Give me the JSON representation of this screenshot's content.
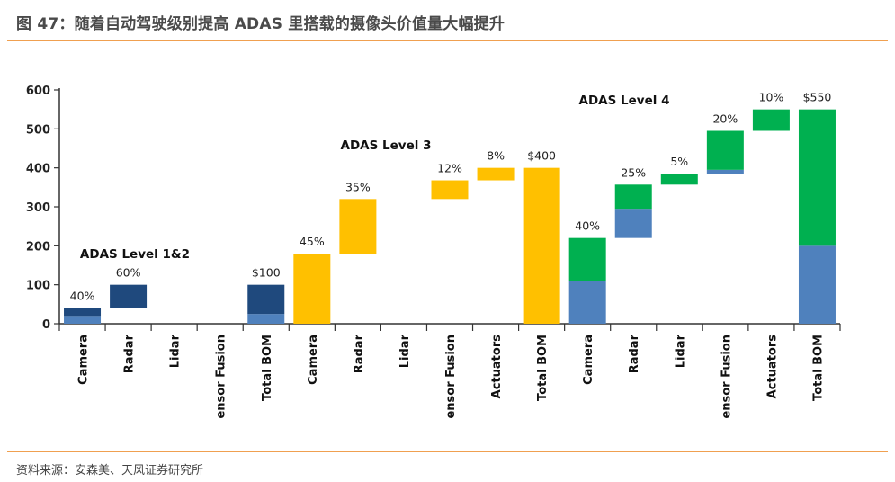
{
  "figure": {
    "title": "图 47：随着自动驾驶级别提高 ADAS 里搭载的摄像头价值量大幅提升",
    "source": "资料来源：安森美、天风证券研究所"
  },
  "colors": {
    "dark_blue": "#1f497d",
    "light_blue": "#4f81bd",
    "yellow": "#ffc000",
    "green": "#00b050",
    "axis": "#333333"
  },
  "chart_data": {
    "type": "bar",
    "subtype": "waterfall",
    "ylim": [
      0,
      600
    ],
    "yticks": [
      0,
      100,
      200,
      300,
      400,
      500,
      600
    ],
    "categories": [
      "Camera",
      "Radar",
      "Lidar",
      "ensor Fusion",
      "Total BOM",
      "Camera",
      "Radar",
      "Lidar",
      "ensor Fusion",
      "Actuators",
      "Total BOM",
      "Camera",
      "Radar",
      "Lidar",
      "ensor Fusion",
      "Actuators",
      "Total BOM"
    ],
    "groups": [
      {
        "name": "ADAS Level 1&2",
        "start": 0,
        "end": 4
      },
      {
        "name": "ADAS Level 3",
        "start": 5,
        "end": 10
      },
      {
        "name": "ADAS Level 4",
        "start": 11,
        "end": 16
      }
    ],
    "bars": [
      {
        "index": 0,
        "segments": [
          {
            "from": 0,
            "to": 20,
            "color": "light_blue"
          },
          {
            "from": 20,
            "to": 40,
            "color": "dark_blue"
          }
        ],
        "label": "40%"
      },
      {
        "index": 1,
        "segments": [
          {
            "from": 40,
            "to": 100,
            "color": "dark_blue"
          }
        ],
        "label": "60%"
      },
      {
        "index": 2,
        "segments": [],
        "label": ""
      },
      {
        "index": 3,
        "segments": [],
        "label": ""
      },
      {
        "index": 4,
        "segments": [
          {
            "from": 0,
            "to": 25,
            "color": "light_blue"
          },
          {
            "from": 25,
            "to": 100,
            "color": "dark_blue"
          }
        ],
        "label": "$100"
      },
      {
        "index": 5,
        "segments": [
          {
            "from": 0,
            "to": 180,
            "color": "yellow"
          }
        ],
        "label": "45%"
      },
      {
        "index": 6,
        "segments": [
          {
            "from": 180,
            "to": 320,
            "color": "yellow"
          }
        ],
        "label": "35%"
      },
      {
        "index": 7,
        "segments": [],
        "label": ""
      },
      {
        "index": 8,
        "segments": [
          {
            "from": 320,
            "to": 368,
            "color": "yellow"
          }
        ],
        "label": "12%"
      },
      {
        "index": 9,
        "segments": [
          {
            "from": 368,
            "to": 400,
            "color": "yellow"
          }
        ],
        "label": "8%"
      },
      {
        "index": 10,
        "segments": [
          {
            "from": 0,
            "to": 400,
            "color": "yellow"
          }
        ],
        "label": "$400"
      },
      {
        "index": 11,
        "segments": [
          {
            "from": 0,
            "to": 110,
            "color": "light_blue"
          },
          {
            "from": 110,
            "to": 220,
            "color": "green"
          }
        ],
        "label": "40%"
      },
      {
        "index": 12,
        "segments": [
          {
            "from": 220,
            "to": 295,
            "color": "light_blue"
          },
          {
            "from": 295,
            "to": 357,
            "color": "green"
          }
        ],
        "label": "25%"
      },
      {
        "index": 13,
        "segments": [
          {
            "from": 357,
            "to": 385,
            "color": "green"
          }
        ],
        "label": "5%"
      },
      {
        "index": 14,
        "segments": [
          {
            "from": 385,
            "to": 395,
            "color": "light_blue"
          },
          {
            "from": 395,
            "to": 495,
            "color": "green"
          }
        ],
        "label": "20%"
      },
      {
        "index": 15,
        "segments": [
          {
            "from": 495,
            "to": 550,
            "color": "green"
          }
        ],
        "label": "10%"
      },
      {
        "index": 16,
        "segments": [
          {
            "from": 0,
            "to": 200,
            "color": "light_blue"
          },
          {
            "from": 200,
            "to": 550,
            "color": "green"
          }
        ],
        "label": "$550"
      }
    ]
  }
}
